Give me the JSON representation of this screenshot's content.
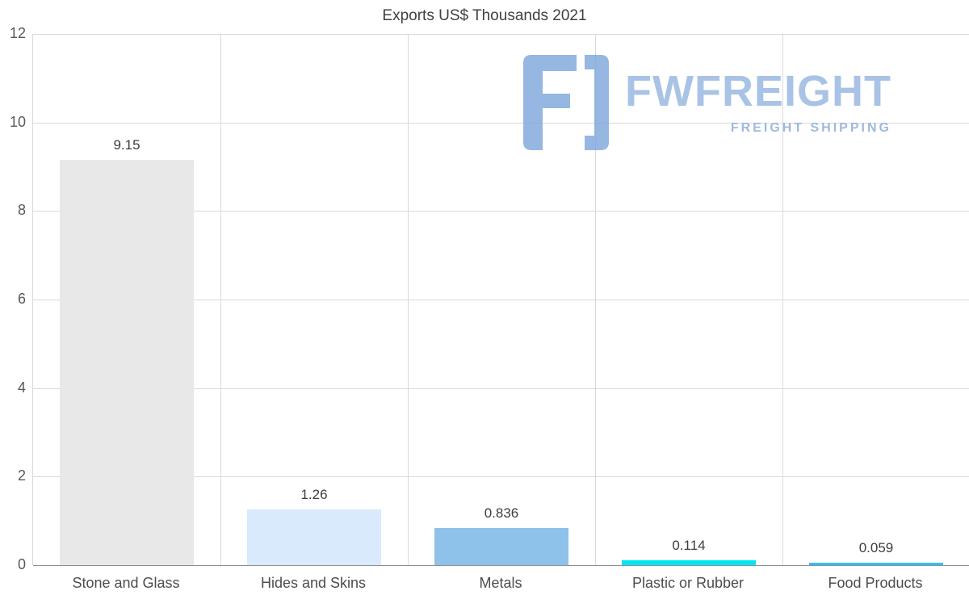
{
  "title": "Exports US$ Thousands 2021",
  "watermark": {
    "name": "FWFREIGHT",
    "tagline": "FREIGHT SHIPPING",
    "icon_color": "#7ea8db",
    "text_color": "#a9c3e6"
  },
  "chart_data": {
    "type": "bar",
    "title": "Exports US$ Thousands 2021",
    "categories": [
      "Stone and Glass",
      "Hides and Skins",
      "Metals",
      "Plastic or Rubber",
      "Food Products"
    ],
    "values": [
      9.15,
      1.26,
      0.836,
      0.114,
      0.059
    ],
    "value_labels": [
      "9.15",
      "1.26",
      "0.836",
      "0.114",
      "0.059"
    ],
    "bar_colors": [
      "#e8e8e8",
      "#d9eafc",
      "#8ec2ea",
      "#00e6f0",
      "#2fc0f2"
    ],
    "xlabel": "",
    "ylabel": "",
    "ylim": [
      0,
      12
    ],
    "yticks": [
      0,
      2,
      4,
      6,
      8,
      10,
      12
    ],
    "grid": true,
    "legend": "none"
  }
}
